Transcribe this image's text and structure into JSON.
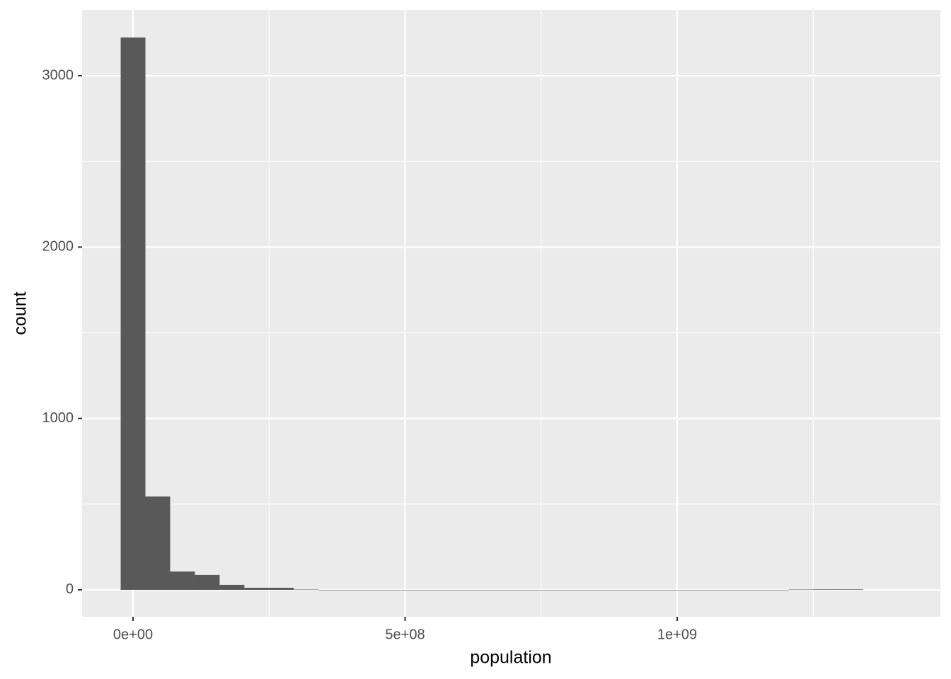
{
  "chart_data": {
    "type": "histogram",
    "x_label": "population",
    "y_label": "count",
    "bins": [
      -22674870,
      22794892,
      68264654,
      113734416,
      159204178,
      204673940,
      250143702,
      295613464,
      341083226,
      386552988,
      432022750,
      477492512,
      522962274,
      568432036,
      613901798,
      659371560,
      704841322,
      750311084,
      795780846,
      841250608,
      886720370,
      932190132,
      977659894,
      1023129656,
      1068599418,
      1114069180,
      1159538942,
      1205008704,
      1250478466,
      1295948228,
      1341417990
    ],
    "counts": [
      3223,
      545,
      107,
      87,
      29,
      12,
      12,
      2,
      0,
      0,
      0,
      0,
      0,
      0,
      0,
      0,
      0,
      0,
      0,
      0,
      0,
      0,
      0,
      0,
      0,
      0,
      0,
      2,
      3,
      3
    ],
    "color": "#595959",
    "xlim": [
      -93600000,
      1483700000
    ],
    "ylim": [
      -157,
      3384
    ],
    "xticks": [
      {
        "value": 0,
        "label": "0e+00"
      },
      {
        "value": 500000000,
        "label": "5e+08"
      },
      {
        "value": 1000000000,
        "label": "1e+09"
      }
    ],
    "yticks": [
      0,
      1000,
      2000,
      3000
    ],
    "x_minor_grid": [
      250000000,
      750000000,
      1250000000
    ],
    "y_minor_grid": [
      500,
      1500,
      2500
    ],
    "grid": true
  }
}
